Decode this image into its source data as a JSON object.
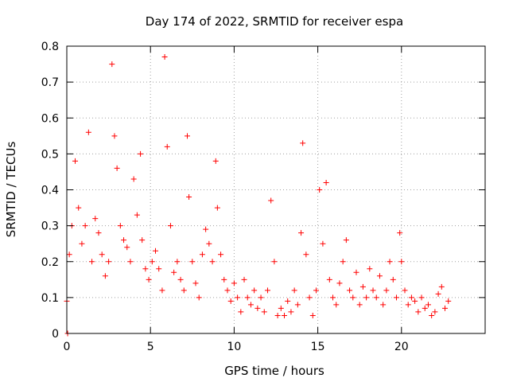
{
  "chart_data": {
    "type": "scatter",
    "title": "Day 174 of 2022, SRMTID for receiver espa",
    "xlabel": "GPS time / hours",
    "ylabel": "SRMTID / TECUs",
    "xlim": [
      0,
      25
    ],
    "ylim": [
      0,
      0.8
    ],
    "xticks": [
      "0",
      "5",
      "10",
      "15",
      "20"
    ],
    "yticks": [
      "0",
      "0.1",
      "0.2",
      "0.3",
      "0.4",
      "0.5",
      "0.6",
      "0.7",
      "0.8"
    ],
    "grid": true,
    "marker": "+",
    "series": [
      {
        "name": "SRMTID",
        "color": "#ff0000",
        "x": [
          0.0,
          0.05,
          0.15,
          0.3,
          0.5,
          0.7,
          0.9,
          1.1,
          1.3,
          1.5,
          1.7,
          1.9,
          2.1,
          2.3,
          2.5,
          2.7,
          2.85,
          3.0,
          3.2,
          3.4,
          3.6,
          3.8,
          4.0,
          4.2,
          4.4,
          4.5,
          4.7,
          4.9,
          5.1,
          5.3,
          5.5,
          5.7,
          5.85,
          6.0,
          6.2,
          6.4,
          6.6,
          6.8,
          7.0,
          7.2,
          7.3,
          7.5,
          7.7,
          7.9,
          8.1,
          8.3,
          8.5,
          8.7,
          8.9,
          9.0,
          9.2,
          9.4,
          9.6,
          9.8,
          10.0,
          10.2,
          10.4,
          10.6,
          10.8,
          11.0,
          11.2,
          11.4,
          11.6,
          11.8,
          12.0,
          12.2,
          12.4,
          12.6,
          12.8,
          13.0,
          13.2,
          13.4,
          13.6,
          13.8,
          14.0,
          14.1,
          14.3,
          14.5,
          14.7,
          14.9,
          15.1,
          15.3,
          15.5,
          15.7,
          15.9,
          16.1,
          16.3,
          16.5,
          16.7,
          16.9,
          17.1,
          17.3,
          17.5,
          17.7,
          17.9,
          18.1,
          18.3,
          18.5,
          18.7,
          18.9,
          19.1,
          19.3,
          19.5,
          19.7,
          19.9,
          20.0,
          20.2,
          20.4,
          20.6,
          20.8,
          21.0,
          21.2,
          21.4,
          21.6,
          21.8,
          22.0,
          22.2,
          22.4,
          22.6,
          22.8
        ],
        "y": [
          0.09,
          0.0,
          0.22,
          0.3,
          0.48,
          0.35,
          0.25,
          0.3,
          0.56,
          0.2,
          0.32,
          0.28,
          0.22,
          0.16,
          0.2,
          0.75,
          0.55,
          0.46,
          0.3,
          0.26,
          0.24,
          0.2,
          0.43,
          0.33,
          0.5,
          0.26,
          0.18,
          0.15,
          0.2,
          0.23,
          0.18,
          0.12,
          0.77,
          0.52,
          0.3,
          0.17,
          0.2,
          0.15,
          0.12,
          0.55,
          0.38,
          0.2,
          0.14,
          0.1,
          0.22,
          0.29,
          0.25,
          0.2,
          0.48,
          0.35,
          0.22,
          0.15,
          0.12,
          0.09,
          0.14,
          0.1,
          0.06,
          0.15,
          0.1,
          0.08,
          0.12,
          0.07,
          0.1,
          0.06,
          0.12,
          0.37,
          0.2,
          0.05,
          0.07,
          0.05,
          0.09,
          0.06,
          0.12,
          0.08,
          0.28,
          0.53,
          0.22,
          0.1,
          0.05,
          0.12,
          0.4,
          0.25,
          0.42,
          0.15,
          0.1,
          0.08,
          0.14,
          0.2,
          0.26,
          0.12,
          0.1,
          0.17,
          0.08,
          0.13,
          0.1,
          0.18,
          0.12,
          0.1,
          0.16,
          0.08,
          0.12,
          0.2,
          0.15,
          0.1,
          0.28,
          0.2,
          0.12,
          0.08,
          0.1,
          0.09,
          0.06,
          0.1,
          0.07,
          0.08,
          0.05,
          0.06,
          0.11,
          0.13,
          0.07,
          0.09
        ]
      }
    ]
  }
}
